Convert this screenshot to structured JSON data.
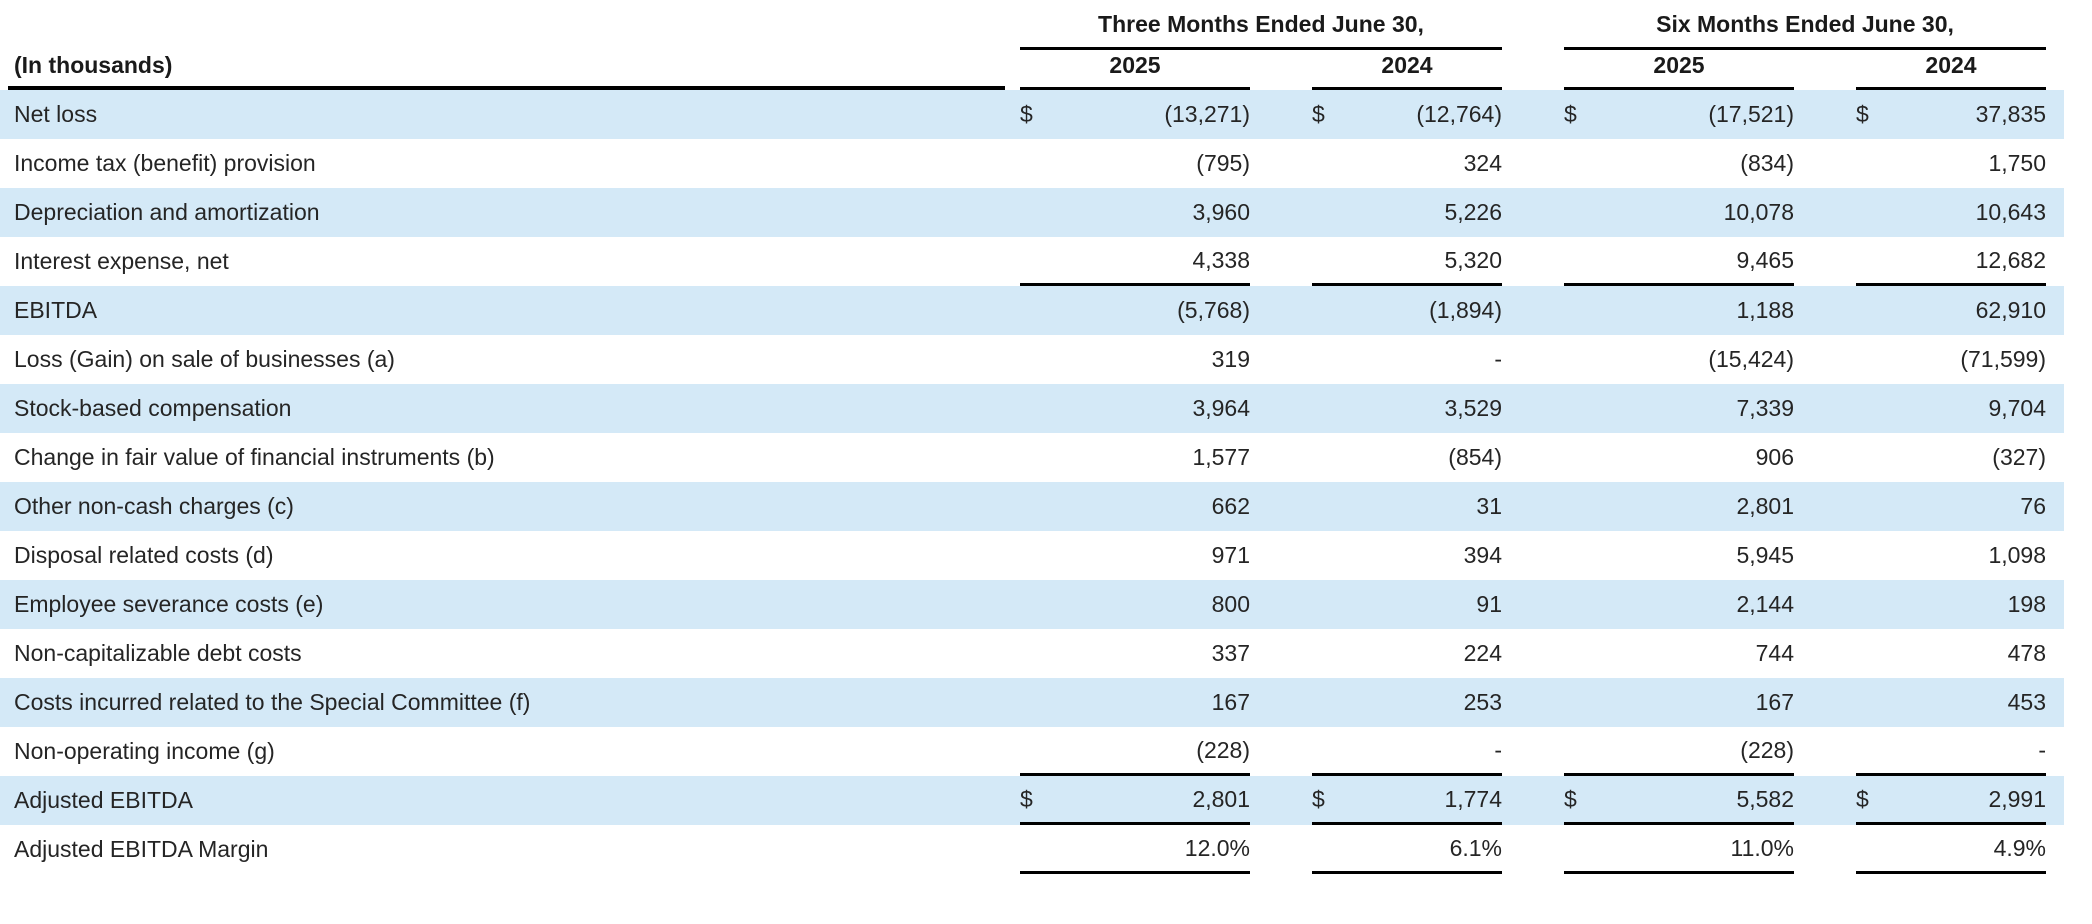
{
  "table": {
    "corner_label": "(In thousands)",
    "dollar_sign": "$",
    "column_groups": [
      {
        "label": "Three Months Ended June 30,",
        "years": [
          "2025",
          "2024"
        ]
      },
      {
        "label": "Six Months Ended June 30,",
        "years": [
          "2025",
          "2024"
        ]
      }
    ],
    "colors": {
      "row_highlight": "#d4e9f7",
      "rule": "#000000",
      "text": "#252525"
    },
    "rows": [
      {
        "label": "Net loss",
        "dollar": true,
        "highlight": true,
        "underline_below": false,
        "values": [
          "(13,271)",
          "(12,764)",
          "(17,521)",
          "37,835"
        ]
      },
      {
        "label": "Income tax (benefit) provision",
        "dollar": false,
        "highlight": false,
        "underline_below": false,
        "values": [
          "(795)",
          "324",
          "(834)",
          "1,750"
        ]
      },
      {
        "label": "Depreciation and amortization",
        "dollar": false,
        "highlight": true,
        "underline_below": false,
        "values": [
          "3,960",
          "5,226",
          "10,078",
          "10,643"
        ]
      },
      {
        "label": "Interest expense, net",
        "dollar": false,
        "highlight": false,
        "underline_below": true,
        "values": [
          "4,338",
          "5,320",
          "9,465",
          "12,682"
        ]
      },
      {
        "label": "EBITDA",
        "dollar": false,
        "highlight": true,
        "underline_below": false,
        "values": [
          "(5,768)",
          "(1,894)",
          "1,188",
          "62,910"
        ]
      },
      {
        "label": "Loss (Gain) on sale of businesses (a)",
        "dollar": false,
        "highlight": false,
        "underline_below": false,
        "values": [
          "319",
          "-",
          "(15,424)",
          "(71,599)"
        ]
      },
      {
        "label": "Stock-based compensation",
        "dollar": false,
        "highlight": true,
        "underline_below": false,
        "values": [
          "3,964",
          "3,529",
          "7,339",
          "9,704"
        ]
      },
      {
        "label": "Change in fair value of financial instruments (b)",
        "dollar": false,
        "highlight": false,
        "underline_below": false,
        "values": [
          "1,577",
          "(854)",
          "906",
          "(327)"
        ]
      },
      {
        "label": "Other non-cash charges (c)",
        "dollar": false,
        "highlight": true,
        "underline_below": false,
        "values": [
          "662",
          "31",
          "2,801",
          "76"
        ]
      },
      {
        "label": "Disposal related costs (d)",
        "dollar": false,
        "highlight": false,
        "underline_below": false,
        "values": [
          "971",
          "394",
          "5,945",
          "1,098"
        ]
      },
      {
        "label": "Employee severance costs (e)",
        "dollar": false,
        "highlight": true,
        "underline_below": false,
        "values": [
          "800",
          "91",
          "2,144",
          "198"
        ]
      },
      {
        "label": "Non-capitalizable debt costs",
        "dollar": false,
        "highlight": false,
        "underline_below": false,
        "values": [
          "337",
          "224",
          "744",
          "478"
        ]
      },
      {
        "label": "Costs incurred related to the Special Committee (f)",
        "dollar": false,
        "highlight": true,
        "underline_below": false,
        "values": [
          "167",
          "253",
          "167",
          "453"
        ]
      },
      {
        "label": "Non-operating income (g)",
        "dollar": false,
        "highlight": false,
        "underline_below": true,
        "values": [
          "(228)",
          "-",
          "(228)",
          "-"
        ]
      },
      {
        "label": "Adjusted EBITDA",
        "dollar": true,
        "highlight": true,
        "underline_below": true,
        "values": [
          "2,801",
          "1,774",
          "5,582",
          "2,991"
        ]
      },
      {
        "label": "Adjusted EBITDA Margin",
        "dollar": false,
        "highlight": false,
        "underline_below": true,
        "values": [
          "12.0%",
          "6.1%",
          "11.0%",
          "4.9%"
        ]
      }
    ]
  }
}
